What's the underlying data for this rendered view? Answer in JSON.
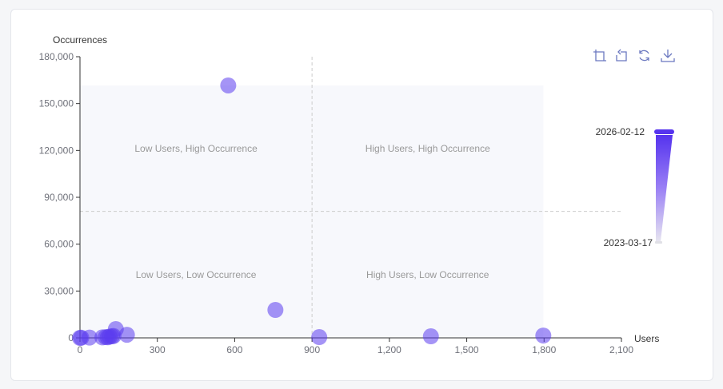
{
  "chart_data": {
    "type": "scatter",
    "title": "",
    "xlabel": "Users",
    "ylabel": "Occurrences",
    "xlim": [
      0,
      2100
    ],
    "ylim": [
      0,
      180000
    ],
    "x_ticks": [
      "0",
      "300",
      "600",
      "900",
      "1,200",
      "1,500",
      "1,800",
      "2,100"
    ],
    "y_ticks": [
      "0",
      "30,000",
      "60,000",
      "90,000",
      "120,000",
      "150,000",
      "180,000"
    ],
    "grid": false,
    "quadrant_lines": {
      "x": 900,
      "y": 81000
    },
    "quadrant_labels": [
      "Low Users, High Occurrence",
      "High Users, High Occurrence",
      "Low Users, Low Occurrence",
      "High Users, Low Occurrence"
    ],
    "points": [
      {
        "x": 575,
        "y": 161600
      },
      {
        "x": 758,
        "y": 17900
      },
      {
        "x": 928,
        "y": 500
      },
      {
        "x": 1361,
        "y": 1000
      },
      {
        "x": 1797,
        "y": 1500
      },
      {
        "x": 0,
        "y": 0
      },
      {
        "x": 5,
        "y": 100
      },
      {
        "x": 37,
        "y": 200
      },
      {
        "x": 87,
        "y": 300
      },
      {
        "x": 100,
        "y": 500
      },
      {
        "x": 108,
        "y": 400
      },
      {
        "x": 115,
        "y": 800
      },
      {
        "x": 124,
        "y": 1000
      },
      {
        "x": 130,
        "y": 1200
      },
      {
        "x": 139,
        "y": 5600
      },
      {
        "x": 182,
        "y": 2000
      }
    ],
    "visual_map": {
      "max_label": "2026-02-12",
      "min_label": "2023-03-17"
    },
    "colors": {
      "point": "#9a88f5",
      "point_dark": "#5b3cef",
      "axis": "#333333",
      "tick_label": "#6e7079",
      "quadrant_bg": "#f7f8fc",
      "dash": "#cccccc"
    }
  },
  "toolbar": {
    "zoom_label": "Zoom",
    "zoom_reset_label": "Zoom Reset",
    "restore_label": "Restore",
    "save_label": "Save as Image"
  }
}
